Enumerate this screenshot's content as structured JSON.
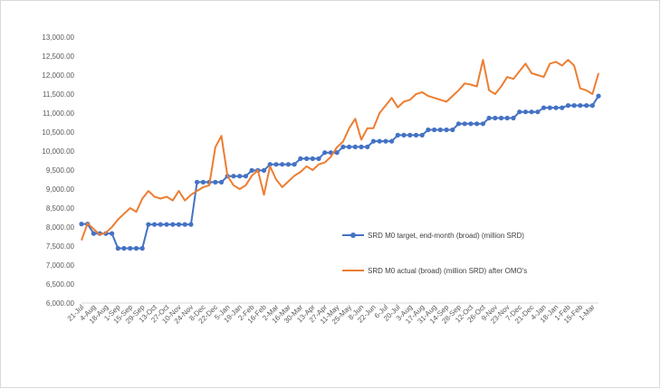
{
  "chart_data": {
    "type": "line",
    "title": "",
    "xlabel": "",
    "ylabel": "",
    "ylim": [
      6000,
      13000
    ],
    "y_ticks": [
      "13,000.00",
      "12,500.00",
      "12,000.00",
      "11,500.00",
      "11,000.00",
      "10,500.00",
      "10,000.00",
      "9,500.00",
      "9,000.00",
      "8,500.00",
      "8,000.00",
      "7,500.00",
      "7,000.00",
      "6,500.00",
      "6,000.00"
    ],
    "x_labels": [
      "21-Jul",
      "4-Aug",
      "18-Aug",
      "1-Sep",
      "15-Sep",
      "29-Sep",
      "13-Oct",
      "27-Oct",
      "10-Nov",
      "24-Nov",
      "8-Dec",
      "22-Dec",
      "5-Jan",
      "19-Jan",
      "2-Feb",
      "16-Feb",
      "2-Mar",
      "16-Mar",
      "30-Mar",
      "13-Apr",
      "27-Apr",
      "11-May",
      "25-May",
      "8-Jun",
      "22-Jun",
      "6-Jul",
      "20-Jul",
      "3-Aug",
      "17-Aug",
      "31-Aug",
      "14-Sep",
      "28-Sep",
      "12-Oct",
      "26-Oct",
      "9-Nov",
      "23-Nov",
      "7-Dec",
      "21-Dec",
      "4-Jan",
      "18-Jan",
      "1-Feb",
      "15-Feb",
      "1-Mar"
    ],
    "grid": false,
    "legend_position": "right",
    "series": [
      {
        "name": "SRD M0 target, end-month (broad)  (million SRD)",
        "color": "#4472c4",
        "marker": "circle",
        "x": [
          0,
          1,
          2,
          3,
          4,
          5,
          6,
          7,
          8,
          9,
          10,
          11,
          12,
          13,
          14,
          15,
          16,
          17,
          18,
          19,
          20,
          21,
          22,
          23,
          24,
          25,
          26,
          27,
          28,
          29,
          30,
          31,
          32,
          33,
          34,
          35,
          36,
          37,
          38,
          39,
          40,
          41,
          42,
          43,
          44,
          45,
          46,
          47,
          48,
          49,
          50,
          51,
          52,
          53,
          54,
          55,
          56,
          57,
          58,
          59,
          60,
          61,
          62,
          63,
          64,
          65,
          66,
          67,
          68,
          69,
          70,
          71,
          72,
          73,
          74,
          75,
          76,
          77,
          78,
          79,
          80,
          81,
          82,
          83,
          84,
          85
        ],
        "values": [
          8080,
          8080,
          7830,
          7830,
          7830,
          7830,
          7440,
          7440,
          7440,
          7440,
          7440,
          8070,
          8070,
          8070,
          8070,
          8070,
          8070,
          8070,
          8070,
          9180,
          9180,
          9180,
          9180,
          9180,
          9340,
          9340,
          9340,
          9340,
          9490,
          9490,
          9490,
          9650,
          9650,
          9650,
          9650,
          9650,
          9800,
          9800,
          9800,
          9800,
          9960,
          9960,
          9960,
          10110,
          10110,
          10110,
          10110,
          10110,
          10260,
          10260,
          10260,
          10260,
          10420,
          10420,
          10420,
          10420,
          10420,
          10560,
          10560,
          10560,
          10560,
          10560,
          10720,
          10720,
          10720,
          10720,
          10720,
          10870,
          10870,
          10870,
          10870,
          10870,
          11030,
          11030,
          11030,
          11030,
          11140,
          11140,
          11140,
          11140,
          11200,
          11200,
          11200,
          11200,
          11200,
          11450
        ]
      },
      {
        "name": "SRD M0 actual (broad) (million SRD) after OMO's",
        "color": "#ed7d31",
        "marker": "none",
        "x": [
          0,
          1,
          2,
          3,
          4,
          5,
          6,
          7,
          8,
          9,
          10,
          11,
          12,
          13,
          14,
          15,
          16,
          17,
          18,
          19,
          20,
          21,
          22,
          23,
          24,
          25,
          26,
          27,
          28,
          29,
          30,
          31,
          32,
          33,
          34,
          35,
          36,
          37,
          38,
          39,
          40,
          41,
          42,
          43,
          44,
          45,
          46,
          47,
          48,
          49,
          50,
          51,
          52,
          53,
          54,
          55,
          56,
          57,
          58,
          59,
          60,
          61,
          62,
          63,
          64,
          65,
          66,
          67,
          68,
          69,
          70,
          71,
          72,
          73,
          74,
          75,
          76,
          77,
          78,
          79,
          80,
          81,
          82,
          83,
          84,
          85
        ],
        "values": [
          7650,
          8100,
          7950,
          7800,
          7850,
          8000,
          8200,
          8350,
          8500,
          8400,
          8750,
          8950,
          8800,
          8750,
          8800,
          8700,
          8950,
          8700,
          8850,
          8950,
          9050,
          9100,
          10100,
          10400,
          9350,
          9100,
          9000,
          9100,
          9350,
          9500,
          8850,
          9600,
          9250,
          9050,
          9200,
          9350,
          9450,
          9600,
          9500,
          9650,
          9700,
          9850,
          10100,
          10250,
          10600,
          10850,
          10300,
          10600,
          10600,
          11000,
          11200,
          11400,
          11150,
          11300,
          11350,
          11500,
          11550,
          11450,
          11400,
          11350,
          11300,
          11450,
          11600,
          11780,
          11750,
          11700,
          12400,
          11600,
          11500,
          11700,
          11950,
          11900,
          12100,
          12300,
          12050,
          12000,
          11950,
          12300,
          12350,
          12250,
          12400,
          12250,
          11650,
          11600,
          11500,
          12050
        ]
      }
    ]
  }
}
